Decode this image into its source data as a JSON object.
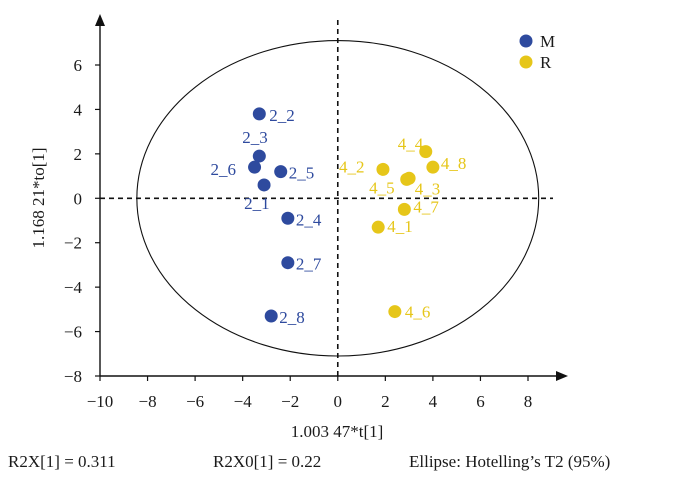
{
  "chart_data": {
    "type": "scatter",
    "title": "",
    "xlabel": "1.003 47*t[1]",
    "ylabel": "1.168 21*to[1]",
    "xlim": [
      -10,
      10
    ],
    "ylim": [
      -8,
      7.5
    ],
    "xticks": [
      -10,
      -8,
      -6,
      -4,
      -2,
      0,
      2,
      4,
      6,
      8
    ],
    "yticks": [
      -8,
      -6,
      -4,
      -2,
      0,
      2,
      4,
      6
    ],
    "grid": false,
    "legend_position": "top-right",
    "ellipse": {
      "center": [
        0,
        0
      ],
      "semi_axis_x": 8.45,
      "semi_axis_y": 7.1
    },
    "series": [
      {
        "name": "M",
        "color": "#2e4a9e",
        "points": [
          {
            "label": "2_2",
            "x": -3.3,
            "y": 3.8
          },
          {
            "label": "2_3",
            "x": -3.3,
            "y": 1.9
          },
          {
            "label": "2_6",
            "x": -3.5,
            "y": 1.4
          },
          {
            "label": "2_5",
            "x": -2.4,
            "y": 1.2
          },
          {
            "label": "2_1",
            "x": -3.1,
            "y": 0.6
          },
          {
            "label": "2_4",
            "x": -2.1,
            "y": -0.9
          },
          {
            "label": "2_7",
            "x": -2.1,
            "y": -2.9
          },
          {
            "label": "2_8",
            "x": -2.8,
            "y": -5.3
          }
        ]
      },
      {
        "name": "R",
        "color": "#e6c619",
        "points": [
          {
            "label": "4_4",
            "x": 3.7,
            "y": 2.1
          },
          {
            "label": "4_8",
            "x": 4.0,
            "y": 1.4
          },
          {
            "label": "4_2",
            "x": 1.9,
            "y": 1.3
          },
          {
            "label": "4_5",
            "x": 3.0,
            "y": 0.9
          },
          {
            "label": "4_3",
            "x": 2.9,
            "y": 0.85
          },
          {
            "label": "4_7",
            "x": 2.8,
            "y": -0.5
          },
          {
            "label": "4_1",
            "x": 1.7,
            "y": -1.3
          },
          {
            "label": "4_6",
            "x": 2.4,
            "y": -5.1
          }
        ]
      }
    ]
  },
  "footer": {
    "r2x": "R2X[1] = 0.311",
    "r2x0": "R2X0[1] = 0.22",
    "ellipse_note": "Ellipse: Hotelling’s T2 (95%)"
  }
}
